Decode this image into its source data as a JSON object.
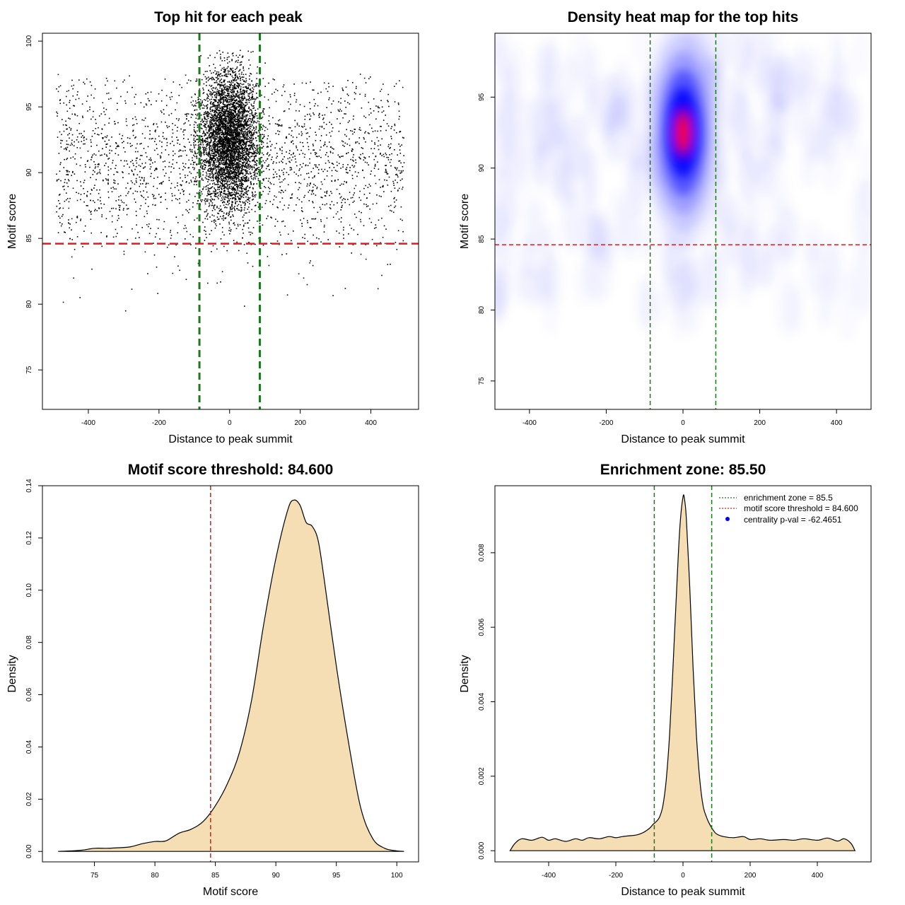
{
  "colors": {
    "threshold": "#e41a1c",
    "zone": "#1a7a1a",
    "fill": "#f5deb3",
    "heat_blue": "#0000ff",
    "heat_red": "#ff0000",
    "legend_point": "#0000ff"
  },
  "chart_data": [
    {
      "type": "scatter",
      "title": "Top hit for each peak",
      "xlabel": "Distance to peak summit",
      "ylabel": "Motif score",
      "xlim": [
        -530,
        535
      ],
      "ylim": [
        72,
        100.6
      ],
      "xticks": [
        -400,
        -200,
        0,
        200,
        400
      ],
      "yticks": [
        75,
        80,
        85,
        90,
        95,
        100
      ],
      "xtick_labels": [
        "-400",
        "-200",
        "0",
        "200",
        "400"
      ],
      "ytick_labels": [
        "75",
        "80",
        "85",
        "90",
        "95",
        "100"
      ],
      "threshold_y": 84.6,
      "zone_x": [
        -85.5,
        85.5
      ],
      "summit_center_x": 0,
      "summit_spread_x": 40,
      "summit_score_mean": 92.5,
      "summit_score_sd": 2.6,
      "n_summit": 4500,
      "n_background": 2200,
      "bg_x_range": [
        -490,
        495
      ],
      "bg_score_mean": 90.8,
      "bg_score_sd": 3.3
    },
    {
      "type": "heatmap",
      "title": "Density heat map for the top hits",
      "xlabel": "Distance to peak summit",
      "ylabel": "Motif score",
      "xlim": [
        -490,
        490
      ],
      "ylim": [
        73,
        99.5
      ],
      "xticks": [
        -400,
        -200,
        0,
        200,
        400
      ],
      "yticks": [
        75,
        80,
        85,
        90,
        95
      ],
      "xtick_labels": [
        "-400",
        "-200",
        "0",
        "200",
        "400"
      ],
      "ytick_labels": [
        "75",
        "80",
        "85",
        "90",
        "95"
      ],
      "threshold_y": 84.6,
      "zone_x": [
        -85.5,
        85.5
      ],
      "peak_x": 0,
      "peak_y": 92.5,
      "peak_sd_x": 40,
      "peak_sd_y": 3.2
    },
    {
      "type": "area",
      "title": "Motif score threshold: 84.600",
      "xlabel": "Motif score",
      "ylabel": "Density",
      "xlim": [
        70.7,
        101.8
      ],
      "ylim": [
        -0.004,
        0.14
      ],
      "xticks": [
        75,
        80,
        85,
        90,
        95,
        100
      ],
      "yticks": [
        0.0,
        0.02,
        0.04,
        0.06,
        0.08,
        0.1,
        0.12,
        0.14
      ],
      "xtick_labels": [
        "75",
        "80",
        "85",
        "90",
        "95",
        "100"
      ],
      "ytick_labels": [
        "0.00",
        "0.02",
        "0.04",
        "0.06",
        "0.08",
        "0.10",
        "0.12",
        "0.14"
      ],
      "threshold_x": 84.6,
      "x": [
        72,
        73,
        74,
        75,
        76,
        77,
        78,
        79,
        80,
        80.5,
        81,
        82,
        83,
        84,
        85,
        86,
        87,
        88,
        89,
        90,
        91,
        91.5,
        92,
        92.5,
        93,
        93.5,
        94,
        95,
        96,
        97,
        98,
        99,
        100,
        100.6
      ],
      "y": [
        0.0,
        0.0002,
        0.0005,
        0.0012,
        0.0012,
        0.0014,
        0.0018,
        0.003,
        0.0038,
        0.0038,
        0.0042,
        0.007,
        0.0085,
        0.0115,
        0.0175,
        0.026,
        0.038,
        0.058,
        0.087,
        0.112,
        0.131,
        0.1345,
        0.1325,
        0.126,
        0.1245,
        0.119,
        0.104,
        0.071,
        0.042,
        0.017,
        0.005,
        0.0012,
        0.0002,
        0.0
      ]
    },
    {
      "type": "area",
      "title": "Enrichment zone: 85.50",
      "xlabel": "Distance to peak summit",
      "ylabel": "Density",
      "xlim": [
        -560,
        560
      ],
      "ylim": [
        -0.0003,
        0.0098
      ],
      "xticks": [
        -400,
        -200,
        0,
        200,
        400
      ],
      "yticks": [
        0.0,
        0.002,
        0.004,
        0.006,
        0.008
      ],
      "xtick_labels": [
        "-400",
        "-200",
        "0",
        "200",
        "400"
      ],
      "ytick_labels": [
        "0.000",
        "0.002",
        "0.004",
        "0.006",
        "0.008"
      ],
      "zone_x": [
        -85.5,
        85.5
      ],
      "x": [
        -515,
        -500,
        -480,
        -450,
        -420,
        -400,
        -380,
        -350,
        -320,
        -300,
        -280,
        -250,
        -220,
        -200,
        -180,
        -160,
        -140,
        -120,
        -100,
        -90,
        -80,
        -70,
        -60,
        -50,
        -40,
        -30,
        -20,
        -10,
        0,
        5,
        10,
        20,
        30,
        40,
        50,
        60,
        70,
        80,
        90,
        100,
        120,
        150,
        180,
        200,
        230,
        260,
        300,
        330,
        360,
        400,
        430,
        460,
        480,
        500,
        512
      ],
      "y": [
        0.0,
        0.0002,
        0.00032,
        0.00028,
        0.00036,
        0.00028,
        0.00032,
        0.00025,
        0.00032,
        0.00028,
        0.00035,
        0.00032,
        0.00038,
        0.00035,
        0.00038,
        0.0004,
        0.00042,
        0.00048,
        0.0006,
        0.0007,
        0.00078,
        0.0009,
        0.0012,
        0.0019,
        0.0031,
        0.0049,
        0.0068,
        0.0086,
        0.0095,
        0.0094,
        0.0089,
        0.0071,
        0.0049,
        0.0031,
        0.0019,
        0.0012,
        0.0009,
        0.0007,
        0.00055,
        0.00045,
        0.00038,
        0.00035,
        0.00038,
        0.0003,
        0.00032,
        0.00028,
        0.0003,
        0.00028,
        0.00032,
        0.00028,
        0.00034,
        0.00026,
        0.00032,
        0.0002,
        0.0
      ],
      "legend": [
        {
          "label": "enrichment zone = 85.5",
          "kind": "dotted-line",
          "color": "#1a7a1a"
        },
        {
          "label": "motif score threshold = 84.600",
          "kind": "dotted-line",
          "color": "#e41a1c"
        },
        {
          "label": "centrality p-val = -62.4651",
          "kind": "point",
          "color": "#0000ff"
        }
      ],
      "legend_position": "top-right"
    }
  ]
}
